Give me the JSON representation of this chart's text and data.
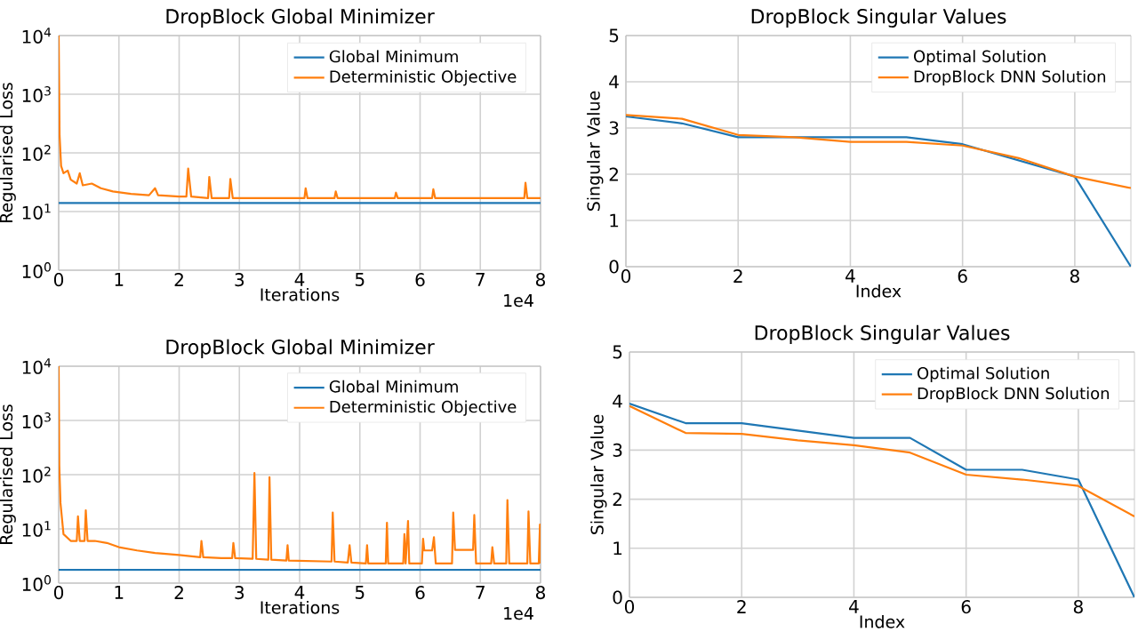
{
  "chart_data": [
    {
      "type": "line",
      "title": "DropBlock Global Minimizer",
      "xlabel": "Iterations",
      "ylabel": "Regularised Loss",
      "log": "y",
      "grid": true,
      "legend": "top right",
      "xlim": [
        0,
        8
      ],
      "ylim": [
        1,
        10000
      ],
      "xticks": [
        0,
        1,
        2,
        3,
        4,
        5,
        6,
        7,
        8
      ],
      "yticks": [
        {
          "value": 1,
          "label": "10$^{0}$"
        },
        {
          "value": 10,
          "label": "10$^{1}$"
        },
        {
          "value": 100,
          "label": "10$^{2}$"
        },
        {
          "value": 1000,
          "label": "10$^{3}$"
        },
        {
          "value": 10000,
          "label": "10$^{4}$"
        }
      ],
      "annotations": [
        "1e4"
      ],
      "series": [
        {
          "name": "Global Minimum",
          "color": "#1f77b4",
          "x": [
            0,
            8
          ],
          "values": [
            14,
            14
          ]
        },
        {
          "name": "Deterministic Objective",
          "color": "#ff7f0e",
          "x": [
            0,
            0.015,
            0.04,
            0.08,
            0.15,
            0.2,
            0.3,
            0.35,
            0.4,
            0.55,
            0.7,
            0.9,
            1.2,
            1.5,
            1.6,
            1.65,
            2.0,
            2.12,
            2.15,
            2.2,
            2.48,
            2.5,
            2.54,
            2.83,
            2.85,
            2.89,
            3.5,
            4.08,
            4.1,
            4.13,
            4.58,
            4.6,
            4.63,
            5.58,
            5.6,
            5.63,
            6.2,
            6.22,
            6.25,
            7.73,
            7.75,
            7.78,
            8.0
          ],
          "values": [
            10000,
            200,
            60,
            45,
            50,
            35,
            30,
            45,
            28,
            30,
            25,
            22,
            20,
            19,
            25,
            19,
            18,
            18,
            54,
            18,
            17,
            39,
            17,
            17,
            36,
            17,
            17,
            17,
            25,
            17,
            17,
            22,
            17,
            17,
            21,
            17,
            17,
            24,
            17,
            17,
            31,
            17,
            17
          ]
        }
      ]
    },
    {
      "type": "line",
      "title": "DropBlock Singular Values",
      "xlabel": "Index",
      "ylabel": "Singular Value",
      "grid": true,
      "legend": "top right",
      "xlim": [
        0,
        9
      ],
      "ylim": [
        0,
        5
      ],
      "xticks": [
        0,
        2,
        4,
        6,
        8
      ],
      "yticks": [
        0,
        1,
        2,
        3,
        4,
        5
      ],
      "x": [
        0,
        1,
        2,
        3,
        4,
        5,
        6,
        7,
        8,
        9
      ],
      "series": [
        {
          "name": "Optimal Solution",
          "color": "#1f77b4",
          "values": [
            3.25,
            3.1,
            2.8,
            2.8,
            2.8,
            2.8,
            2.65,
            2.3,
            1.95,
            0
          ]
        },
        {
          "name": "DropBlock DNN Solution",
          "color": "#ff7f0e",
          "values": [
            3.28,
            3.2,
            2.85,
            2.8,
            2.7,
            2.7,
            2.62,
            2.35,
            1.95,
            1.7
          ]
        }
      ]
    },
    {
      "type": "line",
      "title": "DropBlock Global Minimizer",
      "xlabel": "Iterations",
      "ylabel": "Regularised Loss",
      "log": "y",
      "grid": true,
      "legend": "top right",
      "xlim": [
        0,
        8
      ],
      "ylim": [
        1,
        10000
      ],
      "xticks": [
        0,
        1,
        2,
        3,
        4,
        5,
        6,
        7,
        8
      ],
      "yticks": [
        {
          "value": 1,
          "label": "10$^{0}$"
        },
        {
          "value": 10,
          "label": "10$^{1}$"
        },
        {
          "value": 100,
          "label": "10$^{2}$"
        },
        {
          "value": 1000,
          "label": "10$^{3}$"
        },
        {
          "value": 10000,
          "label": "10$^{4}$"
        }
      ],
      "annotations": [
        "1e4"
      ],
      "series": [
        {
          "name": "Global Minimum",
          "color": "#1f77b4",
          "x": [
            0,
            8
          ],
          "values": [
            1.76,
            1.76
          ]
        },
        {
          "name": "Deterministic Objective",
          "color": "#ff7f0e",
          "x": [
            0,
            0.01,
            0.03,
            0.08,
            0.2,
            0.3,
            0.32,
            0.35,
            0.43,
            0.45,
            0.48,
            0.6,
            0.8,
            1.0,
            1.3,
            1.6,
            2.0,
            2.35,
            2.37,
            2.4,
            2.7,
            2.88,
            2.9,
            2.93,
            3.22,
            3.25,
            3.28,
            3.48,
            3.5,
            3.53,
            3.78,
            3.8,
            3.82,
            4.53,
            4.55,
            4.58,
            4.8,
            4.83,
            4.86,
            5.1,
            5.12,
            5.14,
            5.43,
            5.45,
            5.47,
            5.72,
            5.74,
            5.76,
            5.8,
            5.82,
            6.03,
            6.05,
            6.07,
            6.2,
            6.23,
            6.26,
            6.53,
            6.55,
            6.58,
            6.65,
            6.88,
            6.9,
            6.93,
            7.18,
            7.2,
            7.23,
            7.43,
            7.45,
            7.48,
            7.78,
            7.8,
            7.83,
            7.97,
            7.99,
            8.0
          ],
          "values": [
            10000,
            150,
            30,
            8,
            6,
            6,
            17,
            6,
            6,
            22,
            6,
            6,
            5.5,
            4.6,
            4,
            3.6,
            3.3,
            3,
            6,
            3,
            2.9,
            2.9,
            5.5,
            2.9,
            2.8,
            107,
            2.8,
            2.7,
            90,
            2.7,
            2.6,
            5,
            2.6,
            2.5,
            20,
            2.5,
            2.4,
            5,
            2.4,
            2.3,
            5,
            2.3,
            2.3,
            13,
            2.3,
            2.3,
            8,
            2.3,
            14,
            2.3,
            2.3,
            6.6,
            4,
            4,
            7,
            2.3,
            2.3,
            20,
            4.1,
            4.1,
            4.1,
            18,
            2.3,
            2.3,
            4.6,
            2.3,
            2.3,
            34,
            2.3,
            2.3,
            21,
            2.3,
            2.3,
            12,
            2.3
          ]
        }
      ]
    },
    {
      "type": "line",
      "title": "DropBlock Singular Values",
      "xlabel": "Index",
      "ylabel": "Singular Value",
      "grid": true,
      "legend": "top right",
      "xlim": [
        0,
        9
      ],
      "ylim": [
        0,
        5
      ],
      "xticks": [
        0,
        2,
        4,
        6,
        8
      ],
      "yticks": [
        0,
        1,
        2,
        3,
        4,
        5
      ],
      "x": [
        0,
        1,
        2,
        3,
        4,
        5,
        6,
        7,
        8,
        9
      ],
      "series": [
        {
          "name": "Optimal Solution",
          "color": "#1f77b4",
          "values": [
            3.95,
            3.55,
            3.55,
            3.4,
            3.25,
            3.25,
            2.6,
            2.6,
            2.4,
            0
          ]
        },
        {
          "name": "DropBlock DNN Solution",
          "color": "#ff7f0e",
          "values": [
            3.9,
            3.35,
            3.33,
            3.2,
            3.1,
            2.95,
            2.5,
            2.4,
            2.27,
            1.65
          ]
        }
      ]
    }
  ]
}
